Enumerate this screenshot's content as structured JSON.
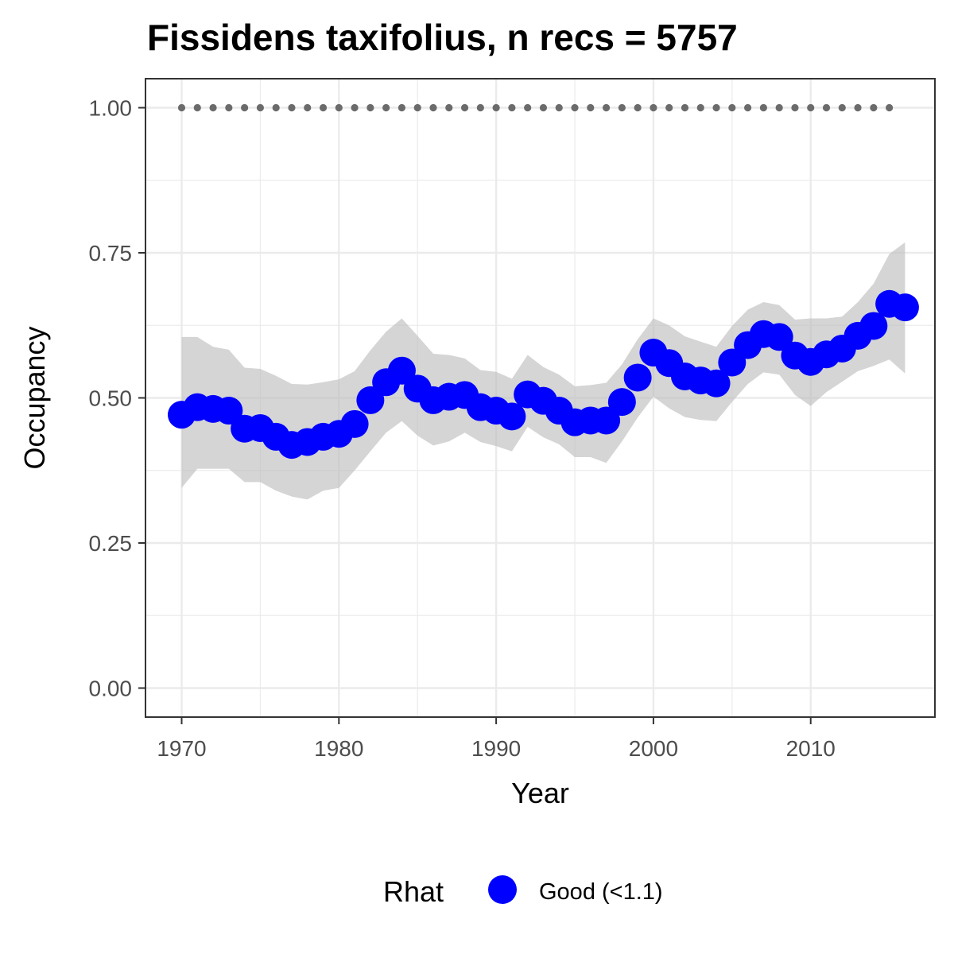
{
  "chart_data": {
    "type": "line",
    "title": "Fissidens taxifolius, n recs = 5757",
    "xlabel": "Year",
    "ylabel": "Occupancy",
    "xlim": [
      1967.7,
      2017.9
    ],
    "ylim": [
      -0.05,
      1.05
    ],
    "x_ticks": [
      1970,
      1980,
      1990,
      2000,
      2010
    ],
    "x_tick_labels": [
      "1970",
      "1980",
      "1990",
      "2000",
      "2010"
    ],
    "y_ticks": [
      0,
      0.25,
      0.5,
      0.75,
      1
    ],
    "y_tick_labels": [
      "0.00",
      "0.25",
      "0.50",
      "0.75",
      "1.00"
    ],
    "grid": true,
    "legend": {
      "title": "Rhat",
      "placement": "bottom",
      "entries": [
        {
          "label": "Good (<1.1)",
          "color": "#0000ff"
        }
      ]
    },
    "colors": {
      "points": "#0000ff",
      "ribbon": "#bfbfbf",
      "reference_dots": "#6b6b6b",
      "grid": "#ebebeb",
      "panel_border": "#333333"
    },
    "series": [
      {
        "x": [
          1970,
          1971,
          1972,
          1973,
          1974,
          1975,
          1976,
          1977,
          1978,
          1979,
          1980,
          1981,
          1982,
          1983,
          1984,
          1985,
          1986,
          1987,
          1988,
          1989,
          1990,
          1991,
          1992,
          1993,
          1994,
          1995,
          1996,
          1997,
          1998,
          1999,
          2000,
          2001,
          2002,
          2003,
          2004,
          2005,
          2006,
          2007,
          2008,
          2009,
          2010,
          2011,
          2012,
          2013,
          2014,
          2015,
          2016
        ],
        "values": [
          0.471,
          0.484,
          0.481,
          0.478,
          0.447,
          0.448,
          0.433,
          0.419,
          0.424,
          0.433,
          0.438,
          0.455,
          0.496,
          0.527,
          0.547,
          0.516,
          0.496,
          0.502,
          0.505,
          0.484,
          0.478,
          0.468,
          0.506,
          0.495,
          0.478,
          0.458,
          0.461,
          0.461,
          0.493,
          0.535,
          0.578,
          0.56,
          0.537,
          0.53,
          0.525,
          0.561,
          0.591,
          0.61,
          0.605,
          0.573,
          0.562,
          0.575,
          0.585,
          0.607,
          0.624,
          0.662,
          0.656
        ],
        "lower": [
          0.345,
          0.378,
          0.378,
          0.378,
          0.355,
          0.355,
          0.34,
          0.33,
          0.325,
          0.34,
          0.345,
          0.375,
          0.408,
          0.44,
          0.46,
          0.435,
          0.418,
          0.425,
          0.44,
          0.424,
          0.417,
          0.408,
          0.45,
          0.432,
          0.42,
          0.398,
          0.398,
          0.388,
          0.425,
          0.466,
          0.502,
          0.482,
          0.467,
          0.462,
          0.46,
          0.493,
          0.524,
          0.544,
          0.54,
          0.505,
          0.486,
          0.51,
          0.528,
          0.546,
          0.555,
          0.566,
          0.542
        ],
        "upper": [
          0.605,
          0.605,
          0.588,
          0.583,
          0.552,
          0.55,
          0.538,
          0.524,
          0.523,
          0.527,
          0.532,
          0.546,
          0.582,
          0.614,
          0.637,
          0.607,
          0.576,
          0.574,
          0.568,
          0.548,
          0.545,
          0.533,
          0.574,
          0.553,
          0.54,
          0.52,
          0.522,
          0.526,
          0.558,
          0.601,
          0.637,
          0.625,
          0.606,
          0.597,
          0.588,
          0.624,
          0.652,
          0.665,
          0.66,
          0.635,
          0.637,
          0.637,
          0.64,
          0.665,
          0.697,
          0.748,
          0.768
        ]
      },
      {
        "x": [
          1970,
          1971,
          1972,
          1973,
          1974,
          1975,
          1976,
          1977,
          1978,
          1979,
          1980,
          1981,
          1982,
          1983,
          1984,
          1985,
          1986,
          1987,
          1988,
          1989,
          1990,
          1991,
          1992,
          1993,
          1994,
          1995,
          1996,
          1997,
          1998,
          1999,
          2000,
          2001,
          2002,
          2003,
          2004,
          2005,
          2006,
          2007,
          2008,
          2009,
          2010,
          2011,
          2012,
          2013,
          2014,
          2015
        ],
        "values": [
          1,
          1,
          1,
          1,
          1,
          1,
          1,
          1,
          1,
          1,
          1,
          1,
          1,
          1,
          1,
          1,
          1,
          1,
          1,
          1,
          1,
          1,
          1,
          1,
          1,
          1,
          1,
          1,
          1,
          1,
          1,
          1,
          1,
          1,
          1,
          1,
          1,
          1,
          1,
          1,
          1,
          1,
          1,
          1,
          1,
          1
        ]
      }
    ]
  }
}
